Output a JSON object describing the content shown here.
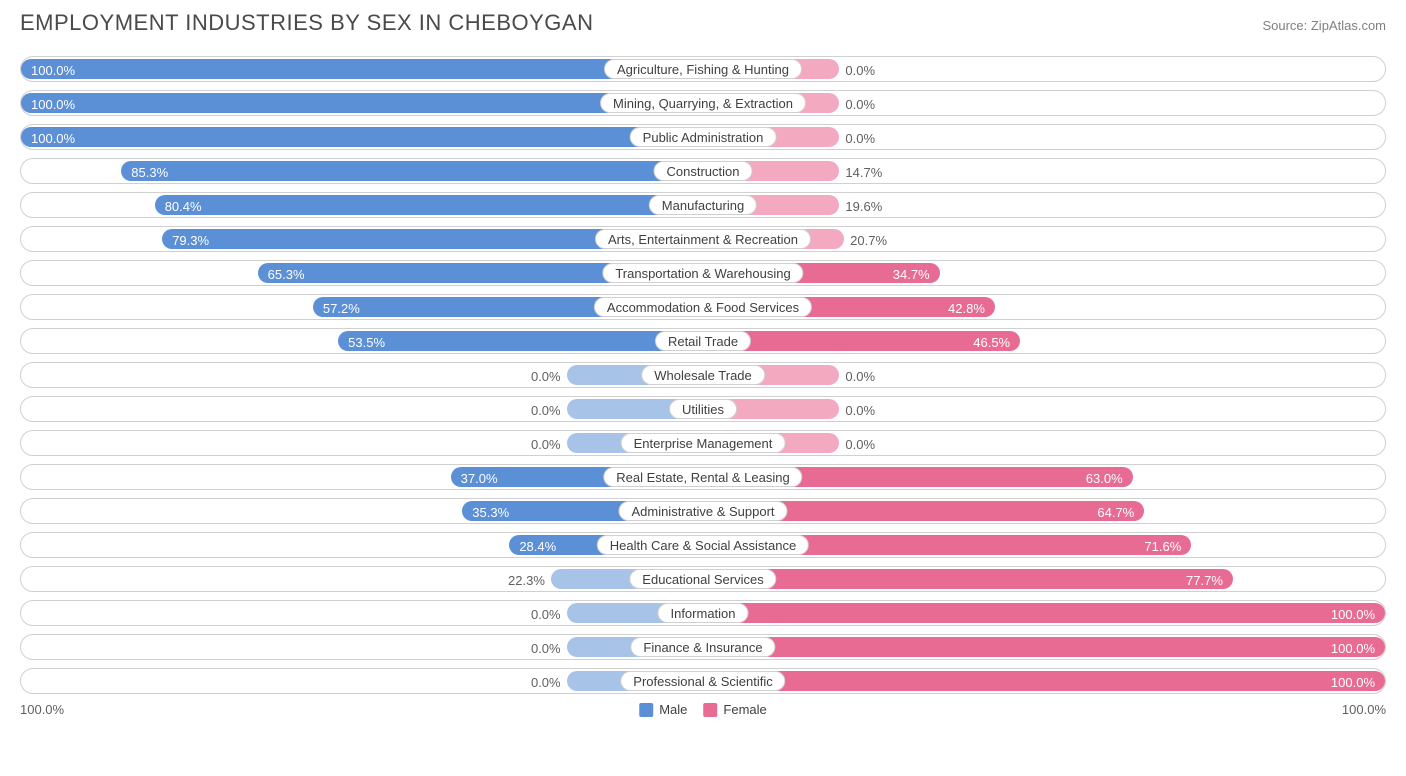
{
  "title": "EMPLOYMENT INDUSTRIES BY SEX IN CHEBOYGAN",
  "source": "Source: ZipAtlas.com",
  "colors": {
    "male_full": "#5b8fd6",
    "male_light": "#a8c3e8",
    "female_full": "#e86b94",
    "female_light": "#f3a9c0",
    "border": "#d0d0d0",
    "text": "#404040",
    "text_muted": "#606060",
    "bg": "#ffffff"
  },
  "axis": {
    "left": "100.0%",
    "right": "100.0%"
  },
  "legend": [
    {
      "label": "Male",
      "color": "#5b8fd6"
    },
    {
      "label": "Female",
      "color": "#e86b94"
    }
  ],
  "min_bar_pct": 20,
  "label_inside_threshold": 25,
  "rows": [
    {
      "category": "Agriculture, Fishing & Hunting",
      "male": 100.0,
      "female": 0.0
    },
    {
      "category": "Mining, Quarrying, & Extraction",
      "male": 100.0,
      "female": 0.0
    },
    {
      "category": "Public Administration",
      "male": 100.0,
      "female": 0.0
    },
    {
      "category": "Construction",
      "male": 85.3,
      "female": 14.7
    },
    {
      "category": "Manufacturing",
      "male": 80.4,
      "female": 19.6
    },
    {
      "category": "Arts, Entertainment & Recreation",
      "male": 79.3,
      "female": 20.7
    },
    {
      "category": "Transportation & Warehousing",
      "male": 65.3,
      "female": 34.7
    },
    {
      "category": "Accommodation & Food Services",
      "male": 57.2,
      "female": 42.8
    },
    {
      "category": "Retail Trade",
      "male": 53.5,
      "female": 46.5
    },
    {
      "category": "Wholesale Trade",
      "male": 0.0,
      "female": 0.0
    },
    {
      "category": "Utilities",
      "male": 0.0,
      "female": 0.0
    },
    {
      "category": "Enterprise Management",
      "male": 0.0,
      "female": 0.0
    },
    {
      "category": "Real Estate, Rental & Leasing",
      "male": 37.0,
      "female": 63.0
    },
    {
      "category": "Administrative & Support",
      "male": 35.3,
      "female": 64.7
    },
    {
      "category": "Health Care & Social Assistance",
      "male": 28.4,
      "female": 71.6
    },
    {
      "category": "Educational Services",
      "male": 22.3,
      "female": 77.7
    },
    {
      "category": "Information",
      "male": 0.0,
      "female": 100.0
    },
    {
      "category": "Finance & Insurance",
      "male": 0.0,
      "female": 100.0
    },
    {
      "category": "Professional & Scientific",
      "male": 0.0,
      "female": 100.0
    }
  ]
}
